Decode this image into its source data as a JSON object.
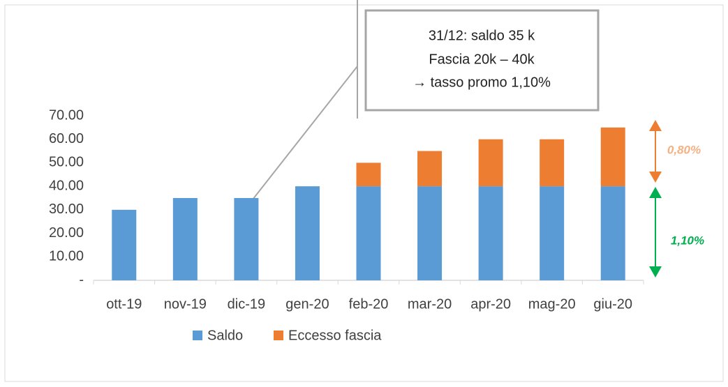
{
  "chart_data": {
    "type": "stacked_bar",
    "categories": [
      "ott-19",
      "nov-19",
      "dic-19",
      "gen-20",
      "feb-20",
      "mar-20",
      "apr-20",
      "mag-20",
      "giu-20"
    ],
    "series": [
      {
        "name": "Saldo",
        "color": "#5b9bd5",
        "values": [
          30,
          35,
          35,
          40,
          40,
          40,
          40,
          40,
          40
        ]
      },
      {
        "name": "Eccesso fascia",
        "color": "#ed7d31",
        "values": [
          0,
          0,
          0,
          0,
          10,
          15,
          20,
          20,
          25
        ]
      }
    ],
    "ylim": [
      0,
      70
    ],
    "yticks": [
      {
        "value": 0,
        "label": "-"
      },
      {
        "value": 10,
        "label": "10.00"
      },
      {
        "value": 20,
        "label": "20.00"
      },
      {
        "value": 30,
        "label": "30.00"
      },
      {
        "value": 40,
        "label": "40.00"
      },
      {
        "value": 50,
        "label": "50.00"
      },
      {
        "value": 60,
        "label": "60.00"
      },
      {
        "value": 70,
        "label": "70.00"
      }
    ],
    "legend": "bottom",
    "annotations": {
      "callout": [
        "31/12: saldo 35 k",
        "Fascia 20k – 40k",
        "→ tasso promo 1,10%"
      ],
      "upper_rate": "0,80%",
      "lower_rate": "1,10%"
    }
  }
}
